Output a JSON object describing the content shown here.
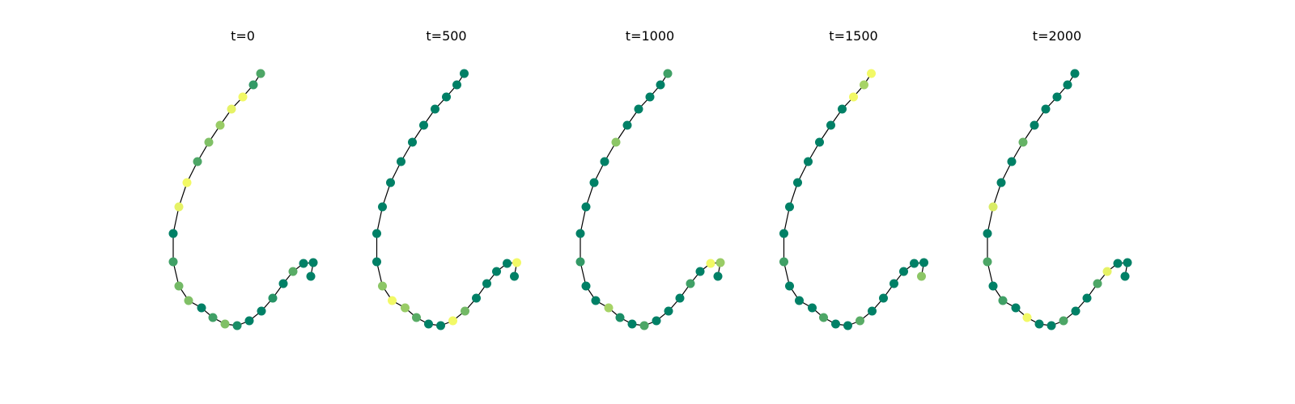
{
  "chart_data": {
    "type": "scatter",
    "axes_visible": false,
    "colormap": "summer",
    "color_scale": {
      "low": "#008066",
      "high": "#ffff66"
    },
    "chain_x": [
      322,
      313,
      300,
      286,
      272,
      258,
      244,
      231,
      221,
      214,
      214,
      221,
      233,
      249,
      263,
      278,
      293,
      308,
      323,
      337,
      350,
      362,
      375,
      387,
      384
    ],
    "chain_y": [
      91,
      105,
      120,
      135,
      155,
      176,
      200,
      226,
      256,
      289,
      324,
      354,
      372,
      381,
      393,
      401,
      403,
      397,
      385,
      369,
      351,
      336,
      326,
      325,
      342
    ],
    "panels": [
      {
        "title": "t=0",
        "values": [
          0.3,
          0.2,
          0.95,
          0.9,
          0.6,
          0.5,
          0.3,
          0.95,
          0.9,
          0.0,
          0.25,
          0.45,
          0.5,
          0.0,
          0.25,
          0.5,
          0.1,
          0.0,
          0.0,
          0.15,
          0.0,
          0.35,
          0.0,
          0.0,
          0.0
        ]
      },
      {
        "title": "t=500",
        "values": [
          0.0,
          0.0,
          0.0,
          0.0,
          0.0,
          0.0,
          0.0,
          0.0,
          0.0,
          0.0,
          0.0,
          0.55,
          0.95,
          0.6,
          0.35,
          0.0,
          0.0,
          0.95,
          0.45,
          0.0,
          0.0,
          0.0,
          0.0,
          0.95,
          0.0
        ]
      },
      {
        "title": "t=1000",
        "values": [
          0.25,
          0.0,
          0.0,
          0.0,
          0.0,
          0.55,
          0.0,
          0.0,
          0.0,
          0.0,
          0.2,
          0.0,
          0.0,
          0.65,
          0.1,
          0.0,
          0.3,
          0.0,
          0.0,
          0.0,
          0.25,
          0.0,
          0.95,
          0.6,
          0.0
        ]
      },
      {
        "title": "t=1500",
        "values": [
          0.95,
          0.65,
          0.95,
          0.0,
          0.0,
          0.0,
          0.0,
          0.0,
          0.0,
          0.0,
          0.25,
          0.0,
          0.0,
          0.0,
          0.3,
          0.0,
          0.0,
          0.35,
          0.0,
          0.0,
          0.0,
          0.0,
          0.0,
          0.0,
          0.55
        ]
      },
      {
        "title": "t=2000",
        "values": [
          0.0,
          0.0,
          0.0,
          0.0,
          0.0,
          0.4,
          0.0,
          0.0,
          0.85,
          0.0,
          0.3,
          0.0,
          0.25,
          0.0,
          0.95,
          0.0,
          0.0,
          0.3,
          0.0,
          0.0,
          0.3,
          0.9,
          0.0,
          0.0,
          0.0
        ]
      }
    ]
  }
}
